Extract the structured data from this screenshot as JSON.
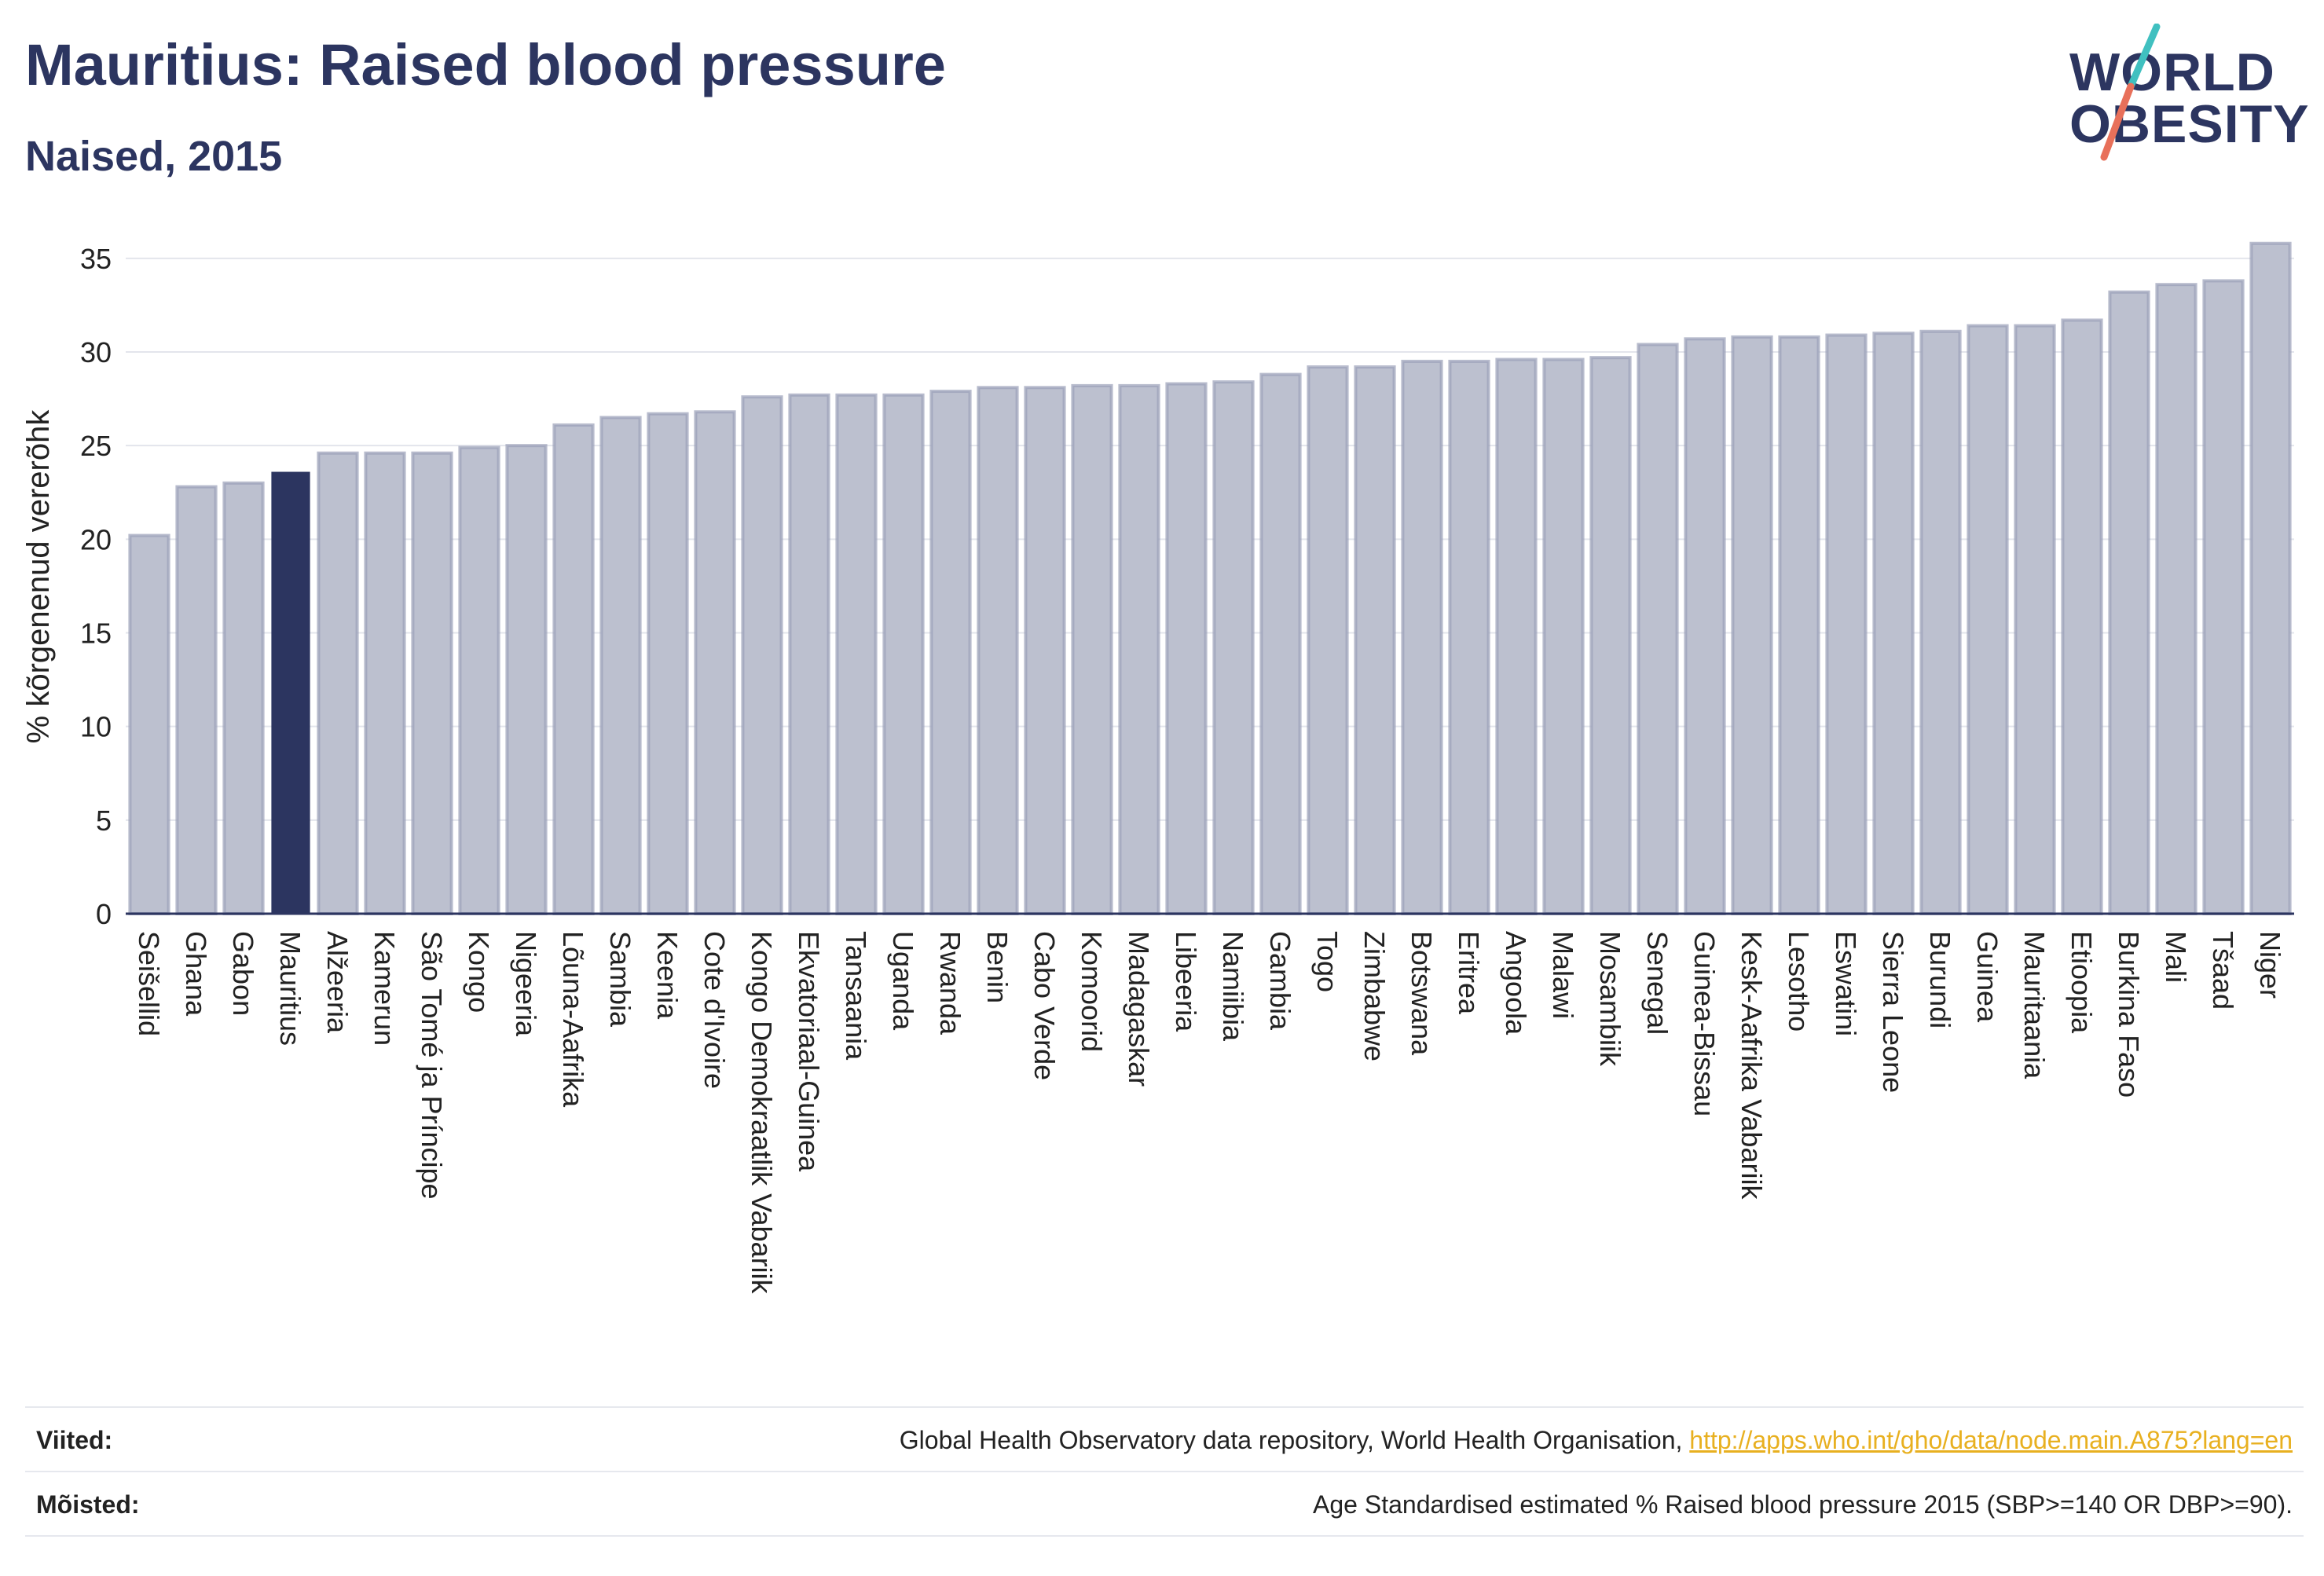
{
  "header": {
    "title": "Mauritius: Raised blood pressure",
    "subtitle": "Naised, 2015"
  },
  "logo": {
    "line1": "WORLD",
    "line2": "OBESITY",
    "slash_colors": [
      "#40c0c0",
      "#e8705a"
    ]
  },
  "colors": {
    "highlight": "#2c3560",
    "bar": "#bcc0cf",
    "bar_stroke": "#9aa0b8",
    "axis_text": "#222222",
    "link": "#e8b020"
  },
  "chart_data": {
    "type": "bar",
    "title": "Mauritius: Raised blood pressure",
    "subtitle": "Naised, 2015",
    "xlabel": "",
    "ylabel": "% kõrgenenud vererõhk",
    "ylim": [
      0,
      36
    ],
    "yticks": [
      0,
      5,
      10,
      15,
      20,
      25,
      30,
      35
    ],
    "grid": true,
    "highlight": "Mauritius",
    "categories": [
      "Seišellid",
      "Ghana",
      "Gabon",
      "Mauritius",
      "Alžeeria",
      "Kamerun",
      "São Tomé ja Príncipe",
      "Kongo",
      "Nigeeria",
      "Lõuna-Aafrika",
      "Sambia",
      "Keenia",
      "Cote d'Ivoire",
      "Kongo Demokraatlik Vabariik",
      "Ekvatoriaal-Guinea",
      "Tansaania",
      "Uganda",
      "Rwanda",
      "Benin",
      "Cabo Verde",
      "Komoorid",
      "Madagaskar",
      "Libeeria",
      "Namiibia",
      "Gambia",
      "Togo",
      "Zimbabwe",
      "Botswana",
      "Eritrea",
      "Angoola",
      "Malawi",
      "Mosambiik",
      "Senegal",
      "Guinea-Bissau",
      "Kesk-Aafrika Vabariik",
      "Lesotho",
      "Eswatini",
      "Sierra Leone",
      "Burundi",
      "Guinea",
      "Mauritaania",
      "Etioopia",
      "Burkina Faso",
      "Mali",
      "Tšaad",
      "Niger"
    ],
    "values": [
      20.2,
      22.8,
      23.0,
      23.6,
      24.6,
      24.6,
      24.6,
      24.9,
      25.0,
      26.1,
      26.5,
      26.7,
      26.8,
      27.6,
      27.7,
      27.7,
      27.7,
      27.9,
      28.1,
      28.1,
      28.2,
      28.2,
      28.3,
      28.4,
      28.8,
      29.2,
      29.2,
      29.5,
      29.5,
      29.6,
      29.6,
      29.7,
      30.4,
      30.7,
      30.8,
      30.8,
      30.9,
      31.0,
      31.1,
      31.4,
      31.4,
      31.7,
      33.2,
      33.6,
      33.8,
      35.8
    ]
  },
  "footer": {
    "sources_label": "Viited:",
    "sources_text": "Global Health Observatory data repository, World Health Organisation, ",
    "sources_link": "http://apps.who.int/gho/data/node.main.A875?lang=en",
    "definitions_label": "Mõisted:",
    "definitions_text": "Age Standardised estimated % Raised blood pressure 2015 (SBP>=140 OR DBP>=90)."
  }
}
